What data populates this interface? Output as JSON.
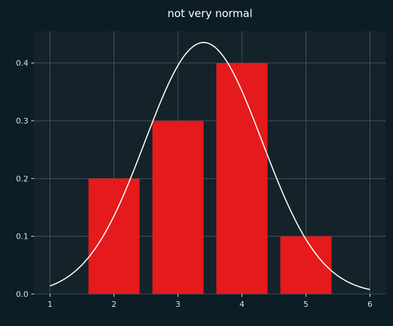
{
  "chart_data": {
    "type": "bar",
    "title": "not very normal",
    "xlabel": "",
    "ylabel": "",
    "x": [
      2,
      3,
      4,
      5
    ],
    "values": [
      0.2,
      0.3,
      0.4,
      0.1
    ],
    "xlim": [
      0.75,
      6.25
    ],
    "ylim": [
      0,
      0.455
    ],
    "xticks": [
      1,
      2,
      3,
      4,
      5,
      6
    ],
    "yticks": [
      0.0,
      0.1,
      0.2,
      0.3,
      0.4
    ],
    "xtick_labels": [
      "1",
      "2",
      "3",
      "4",
      "5",
      "6"
    ],
    "ytick_labels": [
      "0.0",
      "0.1",
      "0.2",
      "0.3",
      "0.4"
    ],
    "grid": true,
    "overlay_curve": {
      "type": "line",
      "shape": "normal-density",
      "mean": 3.4,
      "std": 0.916,
      "x_range": [
        1,
        6
      ]
    },
    "colors": {
      "figure_background": "#0c1d25",
      "plot_background": "#132329",
      "bar": "#e41a1c",
      "curve": "#ffffff",
      "grid": "#4d5d63",
      "text": "#ffffff",
      "tick_text": "#dfe4e6"
    }
  }
}
